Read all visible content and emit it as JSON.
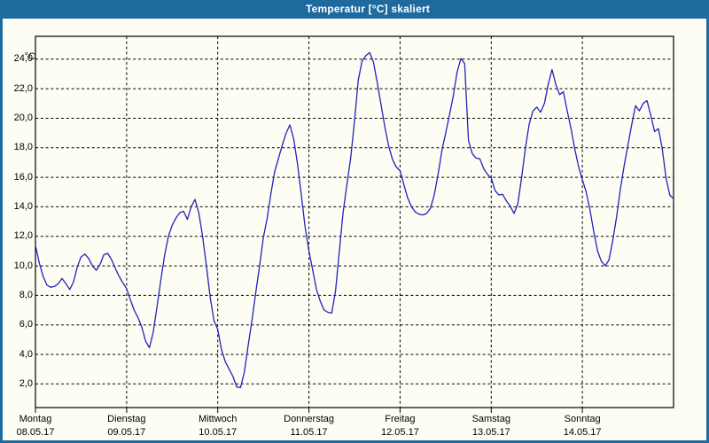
{
  "window": {
    "title": "Temperatur [°C] skaliert"
  },
  "colors": {
    "titlebar": "#1e6a9e",
    "titlebar_text": "#ffffff",
    "window_border": "#1e6a9e",
    "background": "#fdfdf4",
    "plot_border": "#000000",
    "grid": "#000000",
    "axis_text": "#000000",
    "line": "#2222bb"
  },
  "chart_data": {
    "type": "line",
    "title": "Temperatur [°C] skaliert",
    "ylabel": "°C",
    "xlabel": "",
    "grid": true,
    "legend": "none",
    "ylim": [
      0.4,
      25.55
    ],
    "x_range_hours": [
      0,
      168
    ],
    "y_tick_values": [
      24,
      22,
      20,
      18,
      16,
      14,
      12,
      10,
      8,
      6,
      4,
      2
    ],
    "y_tick_labels": [
      "24,0",
      "22,0",
      "20,0",
      "18,0",
      "16,0",
      "14,0",
      "12,0",
      "10,0",
      "8,0",
      "6,0",
      "4,0",
      "2,0"
    ],
    "x_days": [
      {
        "name": "Montag",
        "date": "08.05.17"
      },
      {
        "name": "Dienstag",
        "date": "09.05.17"
      },
      {
        "name": "Mittwoch",
        "date": "10.05.17"
      },
      {
        "name": "Donnerstag",
        "date": "11.05.17"
      },
      {
        "name": "Freitag",
        "date": "12.05.17"
      },
      {
        "name": "Samstag",
        "date": "13.05.17"
      },
      {
        "name": "Sonntag",
        "date": "14.05.17"
      }
    ],
    "series": [
      {
        "name": "Temperatur",
        "color": "#2222bb",
        "unit": "°C",
        "sampling": "hourly from Mon 08.05.17 00:00 to Mon 15.05.17 00:00",
        "values_hourly": [
          11.4,
          10.2,
          9.3,
          8.7,
          8.55,
          8.6,
          8.8,
          9.15,
          8.8,
          8.4,
          8.9,
          9.9,
          10.6,
          10.8,
          10.5,
          10.0,
          9.7,
          10.1,
          10.75,
          10.85,
          10.45,
          9.85,
          9.3,
          8.85,
          8.45,
          7.7,
          7.0,
          6.5,
          5.85,
          4.9,
          4.45,
          5.5,
          7.2,
          9.0,
          10.7,
          12.0,
          12.75,
          13.25,
          13.6,
          13.7,
          13.15,
          14.0,
          14.5,
          13.6,
          12.0,
          10.0,
          7.9,
          6.3,
          5.7,
          4.3,
          3.5,
          3.0,
          2.5,
          1.8,
          1.75,
          2.8,
          4.6,
          6.3,
          8.2,
          10.0,
          11.9,
          13.2,
          14.9,
          16.4,
          17.3,
          18.2,
          19.0,
          19.55,
          18.6,
          16.9,
          14.8,
          12.6,
          11.0,
          9.7,
          8.4,
          7.6,
          7.0,
          6.85,
          6.8,
          8.3,
          11.0,
          13.6,
          15.5,
          17.3,
          19.8,
          22.6,
          23.9,
          24.25,
          24.45,
          23.8,
          22.4,
          20.9,
          19.4,
          18.1,
          17.2,
          16.7,
          16.45,
          15.5,
          14.6,
          14.0,
          13.65,
          13.5,
          13.45,
          13.55,
          13.9,
          14.8,
          16.2,
          17.8,
          19.0,
          20.2,
          21.5,
          23.1,
          24.05,
          23.7,
          18.5,
          17.6,
          17.3,
          17.25,
          16.6,
          16.2,
          15.95,
          15.1,
          14.8,
          14.85,
          14.4,
          14.05,
          13.55,
          14.2,
          16.0,
          18.0,
          19.6,
          20.5,
          20.75,
          20.4,
          21.0,
          22.3,
          23.3,
          22.3,
          21.6,
          21.8,
          20.5,
          19.3,
          17.9,
          16.7,
          15.85,
          15.0,
          13.8,
          12.3,
          11.0,
          10.3,
          10.0,
          10.4,
          11.7,
          13.3,
          15.2,
          16.8,
          18.2,
          19.6,
          20.85,
          20.5,
          21.0,
          21.2,
          20.2,
          19.1,
          19.3,
          18.0,
          16.0,
          14.8,
          14.55
        ]
      }
    ]
  }
}
